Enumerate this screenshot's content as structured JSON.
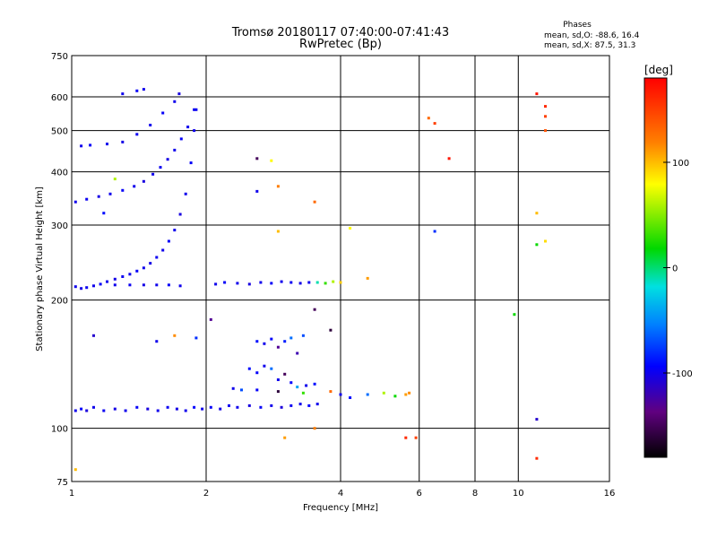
{
  "chart_data": {
    "type": "scatter",
    "title": "Tromsø 20180117 07:40:00-07:41:43",
    "subtitle": "RwPretec (Bp)",
    "phases_title": "Phases",
    "phases_line1": "mean, sd,O: -88.6, 16.4",
    "phases_line2": "mean, sd,X:  87.5, 31.3",
    "xlabel": "Frequency [MHz]",
    "ylabel": "Stationary phase Virtual Height [km]",
    "xscale": "log",
    "yscale": "log",
    "xlim": [
      1,
      16
    ],
    "ylim": [
      75,
      750
    ],
    "xticks": [
      1,
      2,
      4,
      6,
      8,
      10,
      16
    ],
    "yticks": [
      75,
      100,
      200,
      300,
      400,
      500,
      600,
      750
    ],
    "grid": true,
    "colorbar": {
      "label": "[deg]",
      "range": [
        -180,
        180
      ],
      "ticks": [
        100,
        0,
        -100
      ]
    },
    "series": [
      {
        "points": [
          [
            1.02,
            110,
            -100
          ],
          [
            1.05,
            111,
            -95
          ],
          [
            1.08,
            110,
            -105
          ],
          [
            1.12,
            112,
            -100
          ],
          [
            1.18,
            110,
            -98
          ],
          [
            1.25,
            111,
            -102
          ],
          [
            1.32,
            110,
            -100
          ],
          [
            1.4,
            112,
            -96
          ],
          [
            1.48,
            111,
            -104
          ],
          [
            1.56,
            110,
            -100
          ],
          [
            1.64,
            112,
            -98
          ],
          [
            1.72,
            111,
            -102
          ],
          [
            1.8,
            110,
            -100
          ],
          [
            1.88,
            112,
            -94
          ],
          [
            1.96,
            111,
            -100
          ],
          [
            2.05,
            112,
            -96
          ],
          [
            2.15,
            111,
            -102
          ],
          [
            2.25,
            113,
            -98
          ],
          [
            2.35,
            112,
            -100
          ],
          [
            2.5,
            113,
            -104
          ],
          [
            2.65,
            112,
            -96
          ],
          [
            2.8,
            113,
            -100
          ],
          [
            2.95,
            112,
            -106
          ],
          [
            3.1,
            113,
            -98
          ],
          [
            3.25,
            114,
            -100
          ],
          [
            3.4,
            113,
            -94
          ],
          [
            3.55,
            114,
            -100
          ]
        ]
      },
      {
        "points": [
          [
            1.02,
            215,
            -100
          ],
          [
            1.05,
            213,
            -102
          ],
          [
            1.08,
            214,
            -98
          ],
          [
            1.12,
            216,
            -100
          ],
          [
            1.16,
            218,
            -96
          ],
          [
            1.2,
            221,
            -100
          ],
          [
            1.25,
            224,
            -102
          ],
          [
            1.3,
            227,
            -98
          ],
          [
            1.35,
            230,
            -100
          ],
          [
            1.4,
            234,
            -96
          ],
          [
            1.45,
            238,
            -100
          ],
          [
            1.5,
            244,
            -102
          ],
          [
            1.55,
            252,
            -98
          ],
          [
            1.6,
            262,
            -100
          ],
          [
            1.65,
            275,
            -96
          ],
          [
            1.7,
            292,
            -100
          ],
          [
            1.75,
            318,
            -104
          ],
          [
            1.8,
            355,
            -100
          ],
          [
            1.85,
            420,
            -96
          ],
          [
            1.88,
            500,
            -100
          ],
          [
            1.9,
            560,
            -98
          ]
        ]
      },
      {
        "points": [
          [
            1.02,
            340,
            -100
          ],
          [
            1.08,
            345,
            -98
          ],
          [
            1.15,
            350,
            -102
          ],
          [
            1.22,
            355,
            -100
          ],
          [
            1.3,
            362,
            -96
          ],
          [
            1.38,
            370,
            -100
          ],
          [
            1.45,
            380,
            -104
          ],
          [
            1.52,
            395,
            -100
          ],
          [
            1.58,
            410,
            -98
          ],
          [
            1.64,
            428,
            -102
          ],
          [
            1.7,
            450,
            -100
          ],
          [
            1.76,
            478,
            -96
          ],
          [
            1.82,
            510,
            -100
          ],
          [
            1.88,
            560,
            -98
          ]
        ]
      },
      {
        "points": [
          [
            1.05,
            460,
            -100
          ],
          [
            1.1,
            462,
            -96
          ],
          [
            1.2,
            465,
            -100
          ],
          [
            1.3,
            470,
            -102
          ],
          [
            1.4,
            490,
            -98
          ],
          [
            1.5,
            515,
            -100
          ],
          [
            1.6,
            550,
            -96
          ],
          [
            1.7,
            585,
            -100
          ],
          [
            1.74,
            610,
            -104
          ]
        ]
      },
      {
        "points": [
          [
            1.3,
            610,
            -100
          ],
          [
            1.4,
            620,
            -96
          ],
          [
            1.45,
            625,
            -100
          ]
        ]
      },
      {
        "points": [
          [
            1.25,
            217,
            -100
          ],
          [
            1.35,
            217,
            -98
          ],
          [
            1.45,
            217,
            -102
          ],
          [
            1.55,
            217,
            -100
          ],
          [
            1.65,
            217,
            -96
          ],
          [
            1.75,
            216,
            -100
          ],
          [
            2.1,
            218,
            -100
          ],
          [
            2.2,
            220,
            -96
          ],
          [
            2.35,
            219,
            -100
          ],
          [
            2.5,
            218,
            -104
          ],
          [
            2.65,
            220,
            -100
          ],
          [
            2.8,
            219,
            -96
          ],
          [
            2.95,
            221,
            -100
          ],
          [
            3.1,
            220,
            -98
          ],
          [
            3.25,
            219,
            -102
          ],
          [
            3.4,
            220,
            -100
          ],
          [
            3.55,
            220,
            -10
          ],
          [
            3.7,
            219,
            30
          ],
          [
            3.85,
            221,
            60
          ],
          [
            4.0,
            220,
            95
          ]
        ]
      },
      {
        "points": [
          [
            2.6,
            160,
            -90
          ],
          [
            2.7,
            158,
            -100
          ],
          [
            2.8,
            162,
            -95
          ],
          [
            2.9,
            155,
            -130
          ],
          [
            3.0,
            160,
            -85
          ],
          [
            3.1,
            163,
            -60
          ],
          [
            3.2,
            150,
            -120
          ],
          [
            3.3,
            165,
            -70
          ],
          [
            2.5,
            138,
            -90
          ],
          [
            2.6,
            135,
            -95
          ],
          [
            2.7,
            140,
            -100
          ],
          [
            2.8,
            138,
            -60
          ],
          [
            2.9,
            130,
            -100
          ],
          [
            3.0,
            134,
            -150
          ],
          [
            3.1,
            128,
            -95
          ],
          [
            3.2,
            125,
            -40
          ],
          [
            3.35,
            126,
            -100
          ],
          [
            3.5,
            127,
            -90
          ],
          [
            2.3,
            124,
            -100
          ],
          [
            2.4,
            123,
            -70
          ],
          [
            2.6,
            123,
            -95
          ],
          [
            2.9,
            122,
            -160
          ],
          [
            3.3,
            121,
            30
          ],
          [
            3.8,
            122,
            130
          ],
          [
            4.0,
            120,
            -100
          ],
          [
            4.2,
            118,
            -90
          ],
          [
            4.6,
            120,
            -60
          ],
          [
            5.0,
            121,
            60
          ],
          [
            5.3,
            119,
            20
          ],
          [
            5.6,
            120,
            110
          ],
          [
            5.7,
            121,
            115
          ],
          [
            1.7,
            165,
            115
          ],
          [
            1.55,
            160,
            -100
          ],
          [
            1.9,
            163,
            -80
          ],
          [
            3.5,
            190,
            -150
          ],
          [
            3.8,
            170,
            -160
          ]
        ]
      },
      {
        "points": [
          [
            6.3,
            535,
            130
          ],
          [
            6.5,
            520,
            150
          ],
          [
            7.0,
            430,
            170
          ],
          [
            6.5,
            290,
            -80
          ],
          [
            5.6,
            95,
            160
          ],
          [
            5.9,
            95,
            150
          ],
          [
            9.8,
            185,
            20
          ],
          [
            11,
            610,
            170
          ],
          [
            11.5,
            570,
            160
          ],
          [
            11.5,
            540,
            150
          ],
          [
            11.5,
            500,
            140
          ],
          [
            11,
            320,
            100
          ],
          [
            11,
            270,
            20
          ],
          [
            11.5,
            275,
            90
          ],
          [
            11,
            105,
            -110
          ],
          [
            11,
            85,
            160
          ],
          [
            4.6,
            225,
            110
          ],
          [
            4.2,
            295,
            80
          ],
          [
            3.5,
            340,
            130
          ],
          [
            2.9,
            290,
            100
          ],
          [
            2.8,
            425,
            80
          ],
          [
            2.9,
            370,
            120
          ],
          [
            2.6,
            360,
            -100
          ],
          [
            2.6,
            430,
            -150
          ],
          [
            1.25,
            385,
            60
          ],
          [
            1.18,
            320,
            -90
          ],
          [
            1.02,
            80,
            100
          ],
          [
            1.12,
            165,
            -110
          ],
          [
            2.05,
            180,
            -130
          ],
          [
            3.0,
            95,
            110
          ],
          [
            3.5,
            100,
            120
          ]
        ]
      }
    ]
  }
}
